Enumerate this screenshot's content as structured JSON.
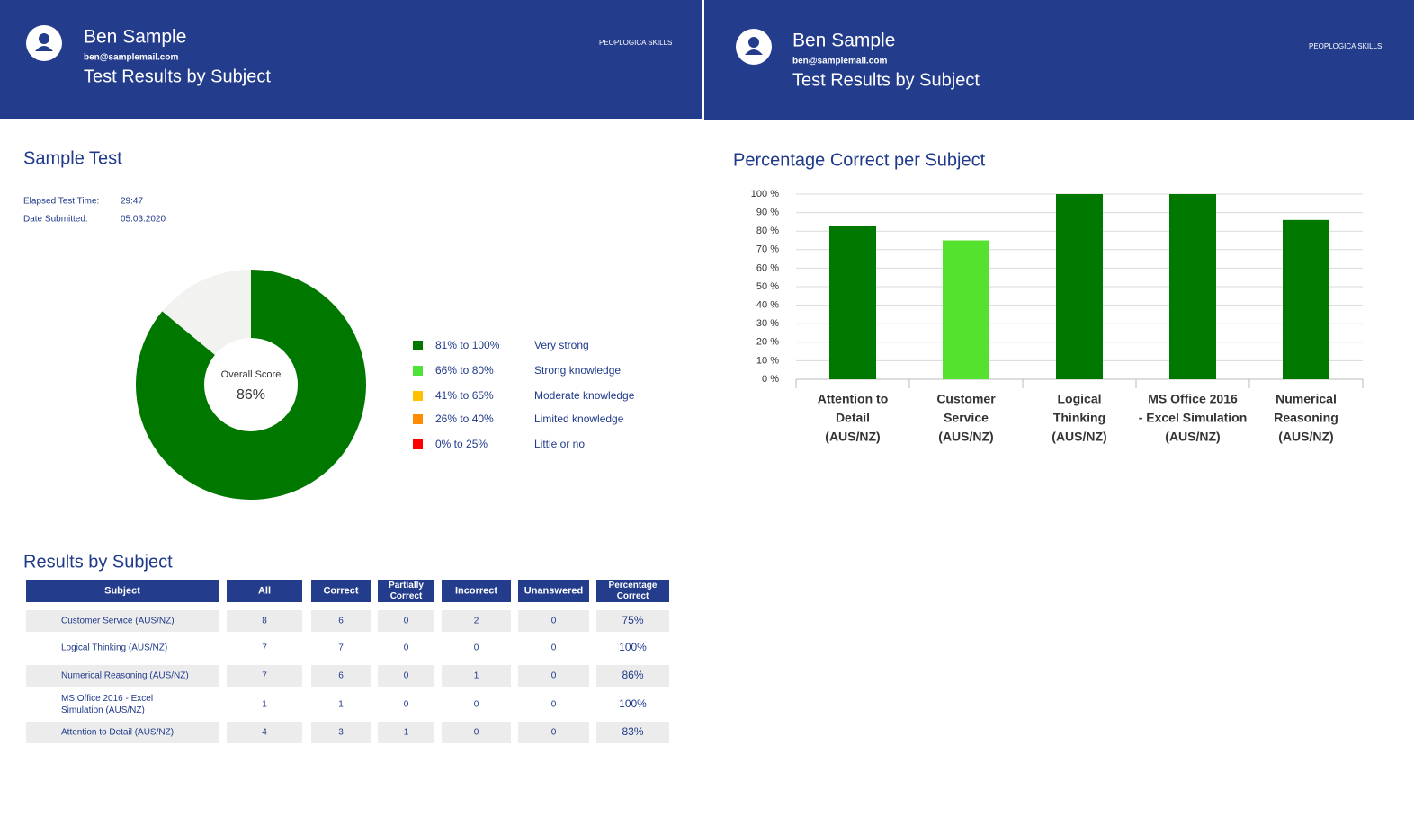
{
  "header": {
    "name": "Ben Sample",
    "email": "ben@samplemail.com",
    "subtitle": "Test Results by Subject",
    "logo": "PEOPLOGICA SKILLS"
  },
  "sample_test": {
    "title": "Sample Test",
    "fields": [
      {
        "label": "Elapsed Test Time:",
        "value": "29:47"
      },
      {
        "label": "Date Submitted:",
        "value": "05.03.2020"
      }
    ]
  },
  "chart_data": [
    {
      "type": "donut",
      "center_label": "Overall Score",
      "values": [
        86,
        14
      ],
      "value_labels": [
        "86%",
        null
      ],
      "colors": [
        "#007800",
        "#f2f2f0"
      ],
      "legend": [
        {
          "label": "81% to 100%",
          "description": "Very strong",
          "color": "#007800"
        },
        {
          "label": "66% to 80%",
          "description": "Strong knowledge",
          "color": "#4ee23a"
        },
        {
          "label": "41% to 65%",
          "description": "Moderate knowledge",
          "color": "#ffc000"
        },
        {
          "label": "26% to 40%",
          "description": "Limited knowledge",
          "color": "#ff8c00"
        },
        {
          "label": "0% to 25%",
          "description": "Little or no",
          "color": "#ff0000"
        }
      ]
    },
    {
      "type": "bar",
      "title": "Percentage Correct per Subject",
      "categories": [
        [
          "Attention to",
          "Detail",
          "(AUS/NZ)"
        ],
        [
          "Customer",
          "Service",
          "(AUS/NZ)"
        ],
        [
          "Logical",
          "Thinking",
          "(AUS/NZ)"
        ],
        [
          "MS Office 2016",
          "- Excel Simulation",
          "(AUS/NZ)"
        ],
        [
          "Numerical",
          "Reasoning",
          "(AUS/NZ)"
        ]
      ],
      "values": [
        83,
        75,
        100,
        100,
        86
      ],
      "colors": [
        "#007800",
        "#55e22f",
        "#007800",
        "#007800",
        "#007800"
      ],
      "ylim": [
        0,
        100
      ],
      "yticks": [
        {
          "value": 0,
          "label": "0 %"
        },
        {
          "value": 10,
          "label": "10 %"
        },
        {
          "value": 20,
          "label": "20 %"
        },
        {
          "value": 30,
          "label": "30 %"
        },
        {
          "value": 40,
          "label": "40 %"
        },
        {
          "value": 50,
          "label": "50 %"
        },
        {
          "value": 60,
          "label": "60 %"
        },
        {
          "value": 70,
          "label": "70 %"
        },
        {
          "value": 80,
          "label": "80 %"
        },
        {
          "value": 90,
          "label": "90 %"
        },
        {
          "value": 100,
          "label": "100 %"
        }
      ],
      "grid": true
    }
  ],
  "results": {
    "title": "Results by Subject",
    "table": {
      "columns": [
        [
          "Subject"
        ],
        [
          "All"
        ],
        [
          "Correct"
        ],
        [
          "Partially",
          "Correct"
        ],
        [
          "Incorrect"
        ],
        [
          "Unanswered"
        ],
        [
          "Percentage",
          "Correct"
        ]
      ],
      "rows": [
        [
          [
            "Customer Service (AUS/NZ)"
          ],
          8,
          6,
          0,
          2,
          0,
          "75%"
        ],
        [
          [
            "Logical Thinking (AUS/NZ)"
          ],
          7,
          7,
          0,
          0,
          0,
          "100%"
        ],
        [
          [
            "Numerical Reasoning (AUS/NZ)"
          ],
          7,
          6,
          0,
          1,
          0,
          "86%"
        ],
        [
          [
            "MS Office 2016 - Excel",
            "Simulation (AUS/NZ)"
          ],
          1,
          1,
          0,
          0,
          0,
          "100%"
        ],
        [
          [
            "Attention to Detail (AUS/NZ)"
          ],
          4,
          3,
          1,
          0,
          0,
          "83%"
        ]
      ]
    }
  }
}
